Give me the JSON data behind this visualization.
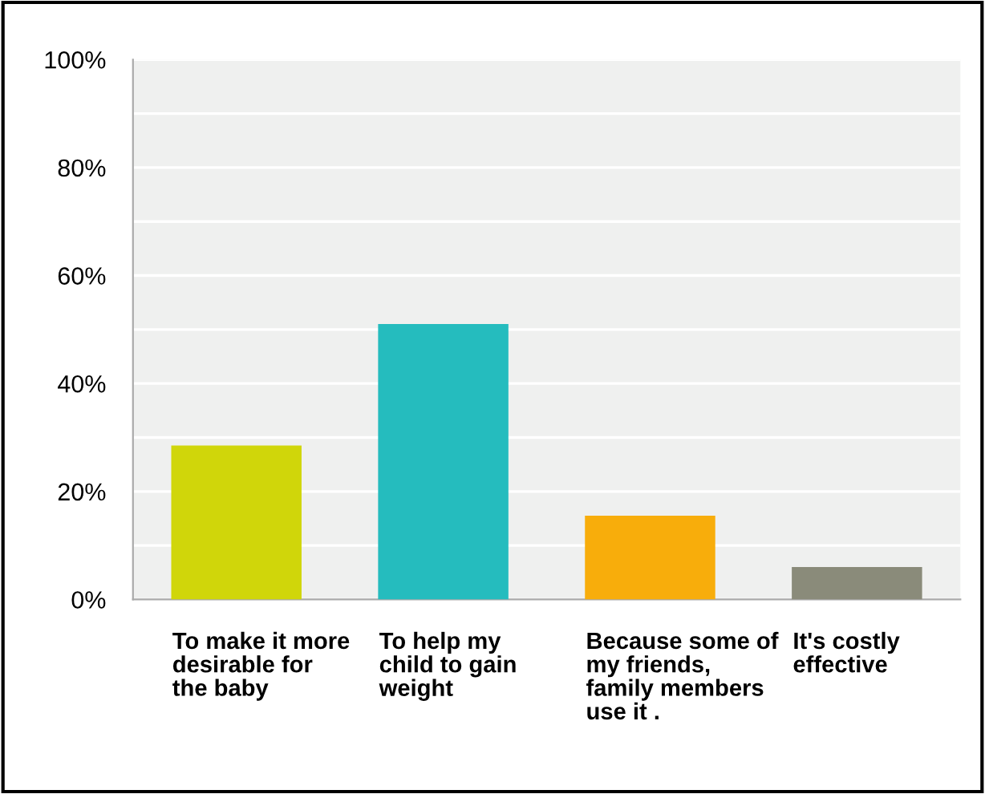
{
  "chart_data": {
    "type": "bar",
    "categories": [
      "To make it more\ndesirable for\nthe baby",
      "To help my\nchild to gain\nweight",
      "Because some of\nmy friends,\nfamily members\nuse it .",
      "It's costly\neffective"
    ],
    "values": [
      28.5,
      51,
      15.5,
      6
    ],
    "colors": [
      "#d0d60a",
      "#25bcbe",
      "#f8ad0b",
      "#8a8b7a"
    ],
    "ylim": [
      0,
      100
    ],
    "yticks": [
      {
        "value": 0,
        "label": "0%"
      },
      {
        "value": 10,
        "label": null
      },
      {
        "value": 20,
        "label": "20%"
      },
      {
        "value": 30,
        "label": null
      },
      {
        "value": 40,
        "label": "40%"
      },
      {
        "value": 50,
        "label": null
      },
      {
        "value": 60,
        "label": "60%"
      },
      {
        "value": 70,
        "label": null
      },
      {
        "value": 80,
        "label": "80%"
      },
      {
        "value": 90,
        "label": null
      },
      {
        "value": 100,
        "label": "100%"
      }
    ],
    "grid": "y"
  }
}
